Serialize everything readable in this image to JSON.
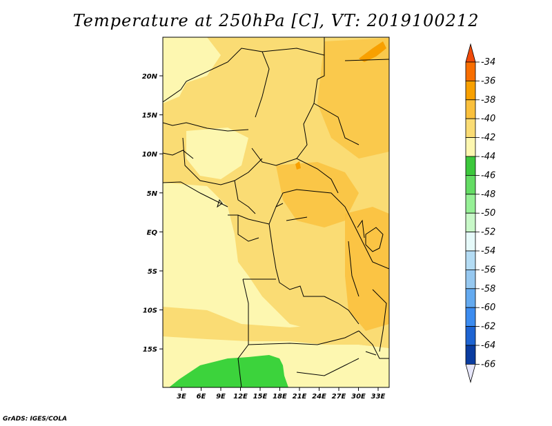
{
  "map": {
    "title": "Temperature at 250hPa [C], VT: 2019100212",
    "credit": "GrADS: IGES/COLA",
    "lat_ticks": [
      "20N",
      "15N",
      "10N",
      "5N",
      "EQ",
      "5S",
      "10S",
      "15S"
    ],
    "lon_ticks": [
      "3E",
      "6E",
      "9E",
      "12E",
      "15E",
      "18E",
      "21E",
      "24E",
      "27E",
      "30E",
      "33E"
    ]
  },
  "colorbar": {
    "labels": [
      "-34",
      "-36",
      "-38",
      "-40",
      "-42",
      "-44",
      "-46",
      "-48",
      "-50",
      "-52",
      "-54",
      "-56",
      "-58",
      "-60",
      "-62",
      "-64",
      "-66"
    ],
    "colors": [
      "#f04a0a",
      "#f86e00",
      "#f8a000",
      "#fac03c",
      "#fadc74",
      "#fdf7b0",
      "#3cc83c",
      "#64dc64",
      "#96f096",
      "#c8f8c8",
      "#e6fafa",
      "#b4dcf4",
      "#96c8f0",
      "#64aaf0",
      "#3c8cf0",
      "#1e64d2",
      "#0a3ca0",
      "#0a1478",
      "#e6e6fa"
    ]
  },
  "regions": {
    "fill_light": "#fdf7b0",
    "fill_mid": "#fadc74",
    "fill_dark": "#fac03c",
    "fill_green": "#3cd33c",
    "fill_orange": "#f8a000"
  }
}
